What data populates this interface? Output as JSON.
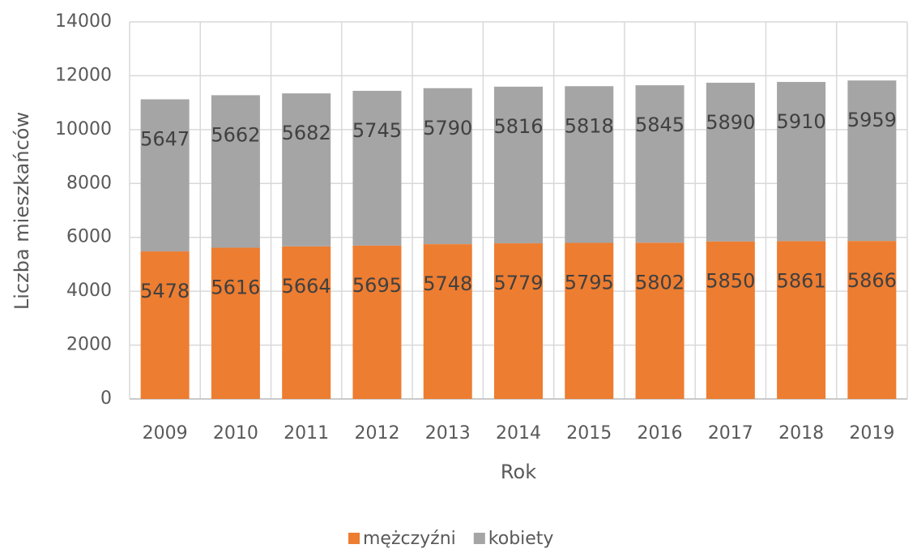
{
  "chart_data": {
    "type": "stacked_bar",
    "xlabel": "Rok",
    "ylabel": "Liczba mieszkańców",
    "categories": [
      "2009",
      "2010",
      "2011",
      "2012",
      "2013",
      "2014",
      "2015",
      "2016",
      "2017",
      "2018",
      "2019"
    ],
    "series": [
      {
        "name": "mężczyźni",
        "color": "#ed7d31",
        "values": [
          5478,
          5616,
          5664,
          5695,
          5748,
          5779,
          5795,
          5802,
          5850,
          5861,
          5866
        ]
      },
      {
        "name": "kobiety",
        "color": "#a5a5a5",
        "values": [
          5647,
          5662,
          5682,
          5745,
          5790,
          5816,
          5818,
          5845,
          5890,
          5910,
          5959
        ]
      }
    ],
    "ylim": [
      0,
      14000
    ],
    "yticks": [
      0,
      2000,
      4000,
      6000,
      8000,
      10000,
      12000,
      14000
    ],
    "grid": true,
    "legend": "bottom"
  }
}
